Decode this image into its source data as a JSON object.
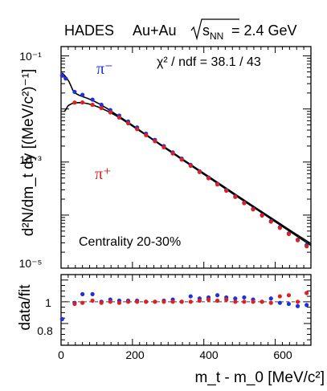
{
  "chart_data": [
    {
      "type": "scatter",
      "panel": "spectrum",
      "header": {
        "experiment": "HADES",
        "system": "Au+Au",
        "energy": "= 2.4 GeV"
      },
      "ylabel": "d²N/dm_t dy [(MeV/c²)⁻¹]",
      "xlim": [
        0,
        700
      ],
      "ylim": [
        1e-05,
        0.15
      ],
      "yscale": "log",
      "annotations": {
        "chi2": "χ² / ndf = 38.1 / 43",
        "centrality": "Centrality 20-30%"
      },
      "series": [
        {
          "name": "π⁻",
          "color": "#2030e0",
          "points": [
            [
              3,
              0.0425
            ],
            [
              13,
              0.0375
            ],
            [
              38,
              0.021
            ],
            [
              60,
              0.0185
            ],
            [
              88,
              0.015
            ],
            [
              113,
              0.012
            ],
            [
              138,
              0.00955
            ],
            [
              163,
              0.0075
            ],
            [
              188,
              0.0058
            ],
            [
              213,
              0.00448
            ],
            [
              238,
              0.00343
            ],
            [
              263,
              0.00262
            ],
            [
              288,
              0.002
            ],
            [
              313,
              0.00152
            ],
            [
              338,
              0.00116
            ],
            [
              363,
              0.000885
            ],
            [
              388,
              0.00067
            ],
            [
              413,
              0.00051
            ],
            [
              438,
              0.00039
            ],
            [
              463,
              0.000298
            ],
            [
              488,
              0.000226
            ],
            [
              513,
              0.000172
            ],
            [
              538,
              0.000131
            ],
            [
              563,
              0.0001005
            ],
            [
              588,
              7.7e-05
            ],
            [
              613,
              5.9e-05
            ],
            [
              638,
              4.52e-05
            ],
            [
              663,
              3.44e-05
            ],
            [
              688,
              2.72e-05
            ]
          ]
        },
        {
          "name": "π⁺",
          "color": "#e02020",
          "points": [
            [
              38,
              0.0132
            ],
            [
              60,
              0.0133
            ],
            [
              88,
              0.012
            ],
            [
              113,
              0.0104
            ],
            [
              138,
              0.00862
            ],
            [
              163,
              0.00688
            ],
            [
              188,
              0.00538
            ],
            [
              213,
              0.00418
            ],
            [
              238,
              0.00322
            ],
            [
              263,
              0.00247
            ],
            [
              288,
              0.0019
            ],
            [
              313,
              0.00145
            ],
            [
              338,
              0.00111
            ],
            [
              363,
              0.000849
            ],
            [
              388,
              0.000648
            ],
            [
              413,
              0.000495
            ],
            [
              438,
              0.000378
            ],
            [
              463,
              0.000288
            ],
            [
              488,
              0.00022
            ],
            [
              513,
              0.000168
            ],
            [
              538,
              0.000128
            ],
            [
              563,
              9.8e-05
            ],
            [
              588,
              7.52e-05
            ],
            [
              613,
              5.74e-05
            ],
            [
              638,
              4.4e-05
            ],
            [
              663,
              3.36e-05
            ],
            [
              688,
              2.58e-05
            ]
          ]
        }
      ],
      "fits": [
        {
          "series": "π⁻",
          "color": "#000000",
          "points": [
            [
              3,
              0.048
            ],
            [
              8,
              0.044
            ],
            [
              15,
              0.039
            ],
            [
              22,
              0.033
            ],
            [
              28,
              0.027
            ],
            [
              33,
              0.0225
            ],
            [
              40,
              0.0198
            ],
            [
              50,
              0.0182
            ],
            [
              60,
              0.0172
            ],
            [
              75,
              0.0158
            ],
            [
              90,
              0.0143
            ],
            [
              110,
              0.0122
            ],
            [
              130,
              0.0101
            ],
            [
              150,
              0.00825
            ],
            [
              175,
              0.00638
            ],
            [
              200,
              0.00492
            ],
            [
              250,
              0.0029
            ],
            [
              300,
              0.00173
            ],
            [
              350,
              0.00103
            ],
            [
              400,
              0.000615
            ],
            [
              450,
              0.000367
            ],
            [
              500,
              0.000219
            ],
            [
              550,
              0.000131
            ],
            [
              600,
              7.9e-05
            ],
            [
              650,
              4.75e-05
            ],
            [
              700,
              2.9e-05
            ]
          ]
        },
        {
          "series": "π⁺",
          "color": "#000000",
          "points": [
            [
              10,
              0.009
            ],
            [
              20,
              0.0116
            ],
            [
              30,
              0.0126
            ],
            [
              40,
              0.0131
            ],
            [
              50,
              0.0132
            ],
            [
              60,
              0.0131
            ],
            [
              75,
              0.0126
            ],
            [
              90,
              0.0118
            ],
            [
              110,
              0.0105
            ],
            [
              130,
              0.00912
            ],
            [
              150,
              0.00775
            ],
            [
              175,
              0.00612
            ],
            [
              200,
              0.00475
            ],
            [
              250,
              0.00283
            ],
            [
              300,
              0.00167
            ],
            [
              350,
              0.00099
            ],
            [
              400,
              0.000588
            ],
            [
              450,
              0.00035
            ],
            [
              500,
              0.000209
            ],
            [
              550,
              0.000125
            ],
            [
              600,
              7.48e-05
            ],
            [
              650,
              4.47e-05
            ],
            [
              700,
              2.68e-05
            ]
          ]
        }
      ],
      "ytick_labels": [
        "10⁻¹",
        "10⁻³",
        "10⁻⁵"
      ]
    },
    {
      "type": "scatter",
      "panel": "ratio",
      "xlabel": "m_t - m_0 [MeV/c²]",
      "ylabel": "data/fit",
      "xlim": [
        0,
        700
      ],
      "ylim": [
        0.6,
        1.25
      ],
      "reference_line": 1,
      "xticks": [
        0,
        200,
        400,
        600
      ],
      "yticks": [
        0.8,
        1
      ],
      "series": [
        {
          "name": "π⁻",
          "color": "#2030e0",
          "points": [
            [
              3,
              0.84
            ],
            [
              38,
              0.99
            ],
            [
              60,
              1.07
            ],
            [
              88,
              1.07
            ],
            [
              113,
              1.0
            ],
            [
              138,
              1.02
            ],
            [
              163,
              1.01
            ],
            [
              188,
              1.01
            ],
            [
              213,
              1.01
            ],
            [
              238,
              1.0
            ],
            [
              263,
              1.0
            ],
            [
              288,
              1.01
            ],
            [
              313,
              1.02
            ],
            [
              338,
              1.0
            ],
            [
              363,
              1.05
            ],
            [
              388,
              1.03
            ],
            [
              413,
              1.04
            ],
            [
              438,
              1.06
            ],
            [
              463,
              1.04
            ],
            [
              488,
              1.03
            ],
            [
              513,
              1.04
            ],
            [
              538,
              1.02
            ],
            [
              563,
              1.0
            ],
            [
              588,
              1.03
            ],
            [
              613,
              0.99
            ],
            [
              638,
              0.98
            ],
            [
              663,
              0.96
            ],
            [
              688,
              0.97
            ]
          ]
        },
        {
          "name": "π⁺",
          "color": "#e02020",
          "points": [
            [
              38,
              0.98
            ],
            [
              60,
              0.99
            ],
            [
              88,
              1.01
            ],
            [
              113,
              0.99
            ],
            [
              138,
              1.0
            ],
            [
              163,
              0.99
            ],
            [
              188,
              1.0
            ],
            [
              213,
              1.0
            ],
            [
              238,
              1.0
            ],
            [
              263,
              1.0
            ],
            [
              288,
              1.0
            ],
            [
              313,
              1.0
            ],
            [
              338,
              1.0
            ],
            [
              363,
              1.0
            ],
            [
              388,
              1.01
            ],
            [
              413,
              1.02
            ],
            [
              438,
              1.01
            ],
            [
              463,
              1.02
            ],
            [
              488,
              1.0
            ],
            [
              513,
              1.0
            ],
            [
              538,
              1.0
            ],
            [
              563,
              1.0
            ],
            [
              588,
              0.99
            ],
            [
              613,
              1.05
            ],
            [
              638,
              1.06
            ],
            [
              663,
              1.0
            ],
            [
              688,
              1.08
            ]
          ]
        }
      ]
    }
  ]
}
